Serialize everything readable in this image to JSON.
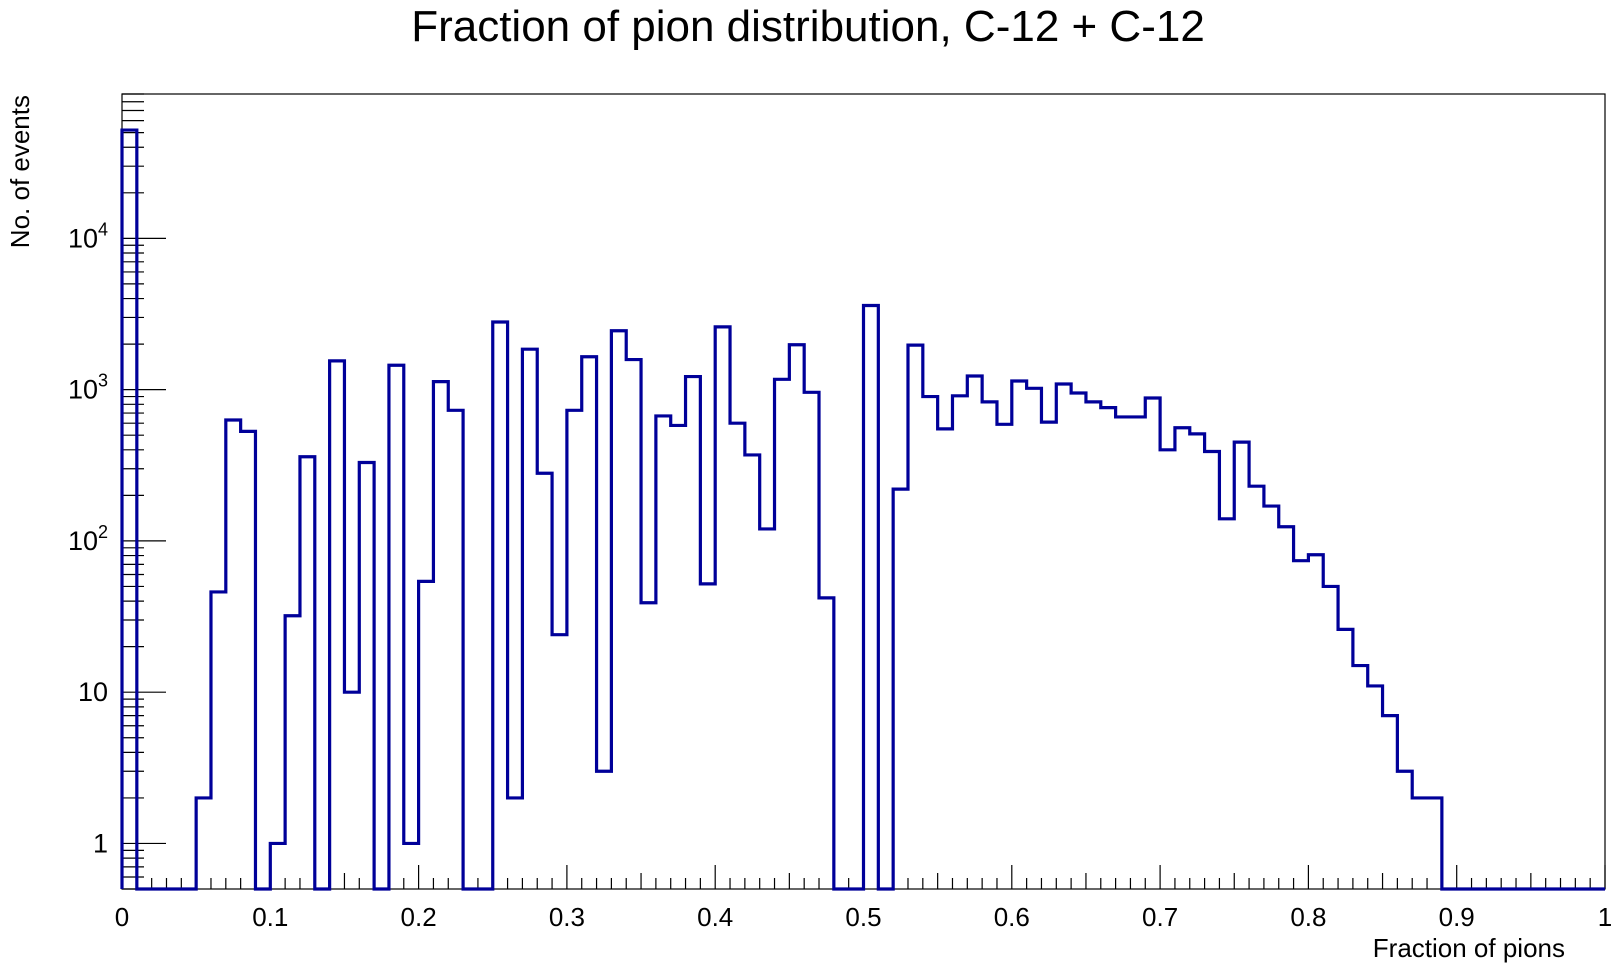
{
  "chart_data": {
    "type": "bar",
    "style": "step-histogram",
    "title": "Fraction of pion distribution, C-12 + C-12",
    "xlabel": "Fraction of pions",
    "ylabel": "No. of events",
    "xlim": [
      0,
      1
    ],
    "ylim": [
      0.5,
      90000
    ],
    "yscale": "log",
    "grid": false,
    "line_color": "#000099",
    "bin_width": 0.01,
    "xticks": [
      {
        "value": 0,
        "label": "0"
      },
      {
        "value": 0.1,
        "label": "0.1"
      },
      {
        "value": 0.2,
        "label": "0.2"
      },
      {
        "value": 0.3,
        "label": "0.3"
      },
      {
        "value": 0.4,
        "label": "0.4"
      },
      {
        "value": 0.5,
        "label": "0.5"
      },
      {
        "value": 0.6,
        "label": "0.6"
      },
      {
        "value": 0.7,
        "label": "0.7"
      },
      {
        "value": 0.8,
        "label": "0.8"
      },
      {
        "value": 0.9,
        "label": "0.9"
      },
      {
        "value": 1,
        "label": "1"
      }
    ],
    "yticks": [
      {
        "value": 1,
        "base": "1",
        "exp": ""
      },
      {
        "value": 10,
        "base": "10",
        "exp": ""
      },
      {
        "value": 100,
        "base": "10",
        "exp": "2"
      },
      {
        "value": 1000,
        "base": "10",
        "exp": "3"
      },
      {
        "value": 10000,
        "base": "10",
        "exp": "4"
      }
    ],
    "values": [
      52000,
      0,
      0,
      0,
      0,
      2,
      46,
      630,
      530,
      0,
      1,
      32,
      360,
      0,
      1550,
      10,
      330,
      0,
      1450,
      1,
      54,
      1130,
      730,
      0,
      0,
      2800,
      2,
      1850,
      280,
      24,
      730,
      1650,
      3,
      2450,
      1580,
      39,
      670,
      580,
      1220,
      52,
      2600,
      600,
      370,
      120,
      1170,
      1980,
      960,
      42,
      0,
      0,
      3600,
      0,
      220,
      1970,
      900,
      550,
      910,
      1230,
      830,
      590,
      1140,
      1020,
      610,
      1090,
      950,
      830,
      760,
      660,
      660,
      880,
      400,
      560,
      510,
      390,
      140,
      450,
      230,
      170,
      124,
      74,
      81,
      50,
      26,
      15,
      11,
      7,
      3,
      2,
      2,
      0,
      0,
      0,
      0,
      0,
      0,
      0,
      0,
      0,
      0,
      0
    ]
  }
}
